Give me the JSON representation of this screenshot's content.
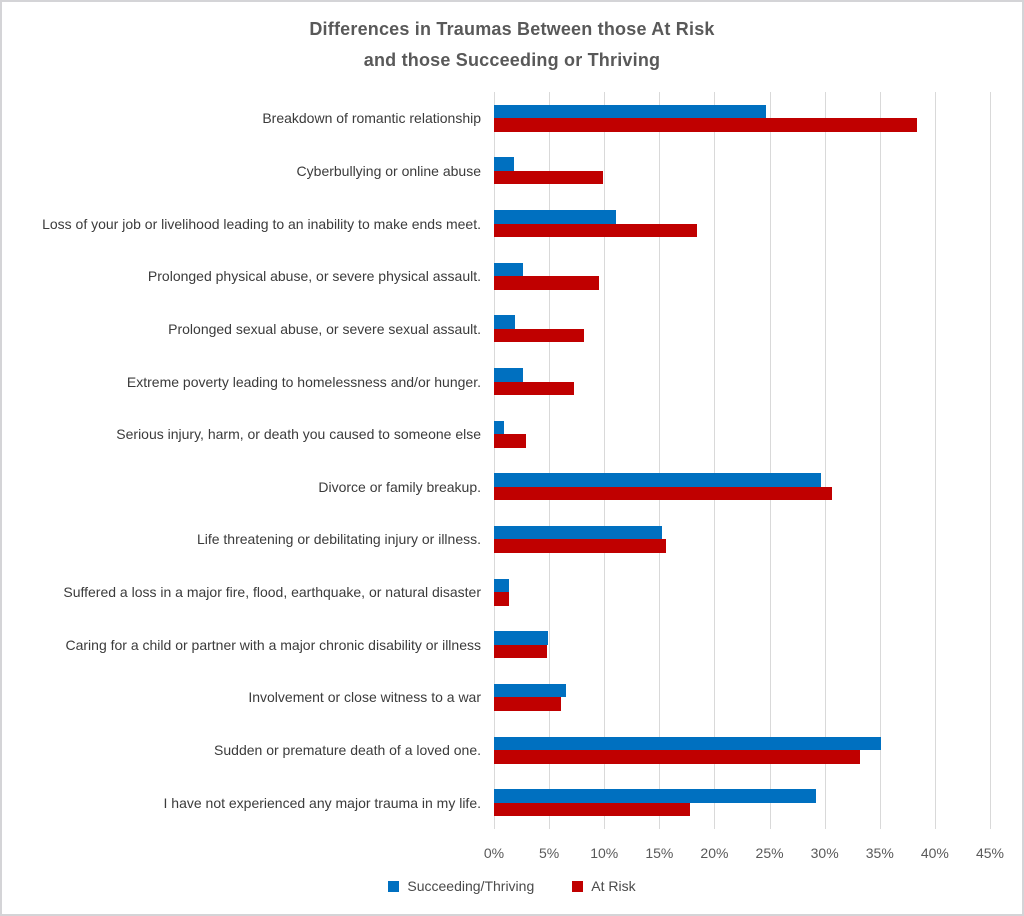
{
  "title": {
    "line1": "Differences in Traumas Between those At Risk",
    "line2": "and those Succeeding or Thriving"
  },
  "chart_data": {
    "type": "bar",
    "orientation": "horizontal",
    "title": "Differences in Traumas Between those At Risk and those Succeeding or Thriving",
    "xlabel": "",
    "ylabel": "",
    "xlim": [
      0,
      45
    ],
    "x_ticks": [
      "0%",
      "5%",
      "10%",
      "15%",
      "20%",
      "25%",
      "30%",
      "35%",
      "40%",
      "45%"
    ],
    "grid": true,
    "legend_position": "bottom",
    "categories": [
      "Breakdown of romantic relationship",
      "Cyberbullying or online abuse",
      "Loss of your job or livelihood leading to an inability to make ends meet.",
      "Prolonged physical abuse, or severe physical assault.",
      "Prolonged sexual abuse, or severe sexual assault.",
      "Extreme poverty leading to homelessness and/or hunger.",
      "Serious injury, harm, or death you caused to someone else",
      "Divorce or family breakup.",
      "Life threatening or debilitating injury or illness.",
      "Suffered a loss in a major fire, flood, earthquake, or natural disaster",
      "Caring for a child or partner with a major chronic disability or illness",
      "Involvement or close witness to a war",
      "Sudden or premature death of a loved one.",
      "I have not experienced any major trauma in my life."
    ],
    "series": [
      {
        "name": "Succeeding/Thriving",
        "color": "#0070C0",
        "values": [
          24.7,
          1.8,
          11.1,
          2.6,
          1.9,
          2.6,
          0.9,
          29.7,
          15.2,
          1.4,
          4.9,
          6.5,
          35.1,
          29.2
        ]
      },
      {
        "name": "At Risk",
        "color": "#C00000",
        "values": [
          38.4,
          9.9,
          18.4,
          9.5,
          8.2,
          7.3,
          2.9,
          30.7,
          15.6,
          1.4,
          4.8,
          6.1,
          33.2,
          17.8
        ]
      }
    ]
  }
}
